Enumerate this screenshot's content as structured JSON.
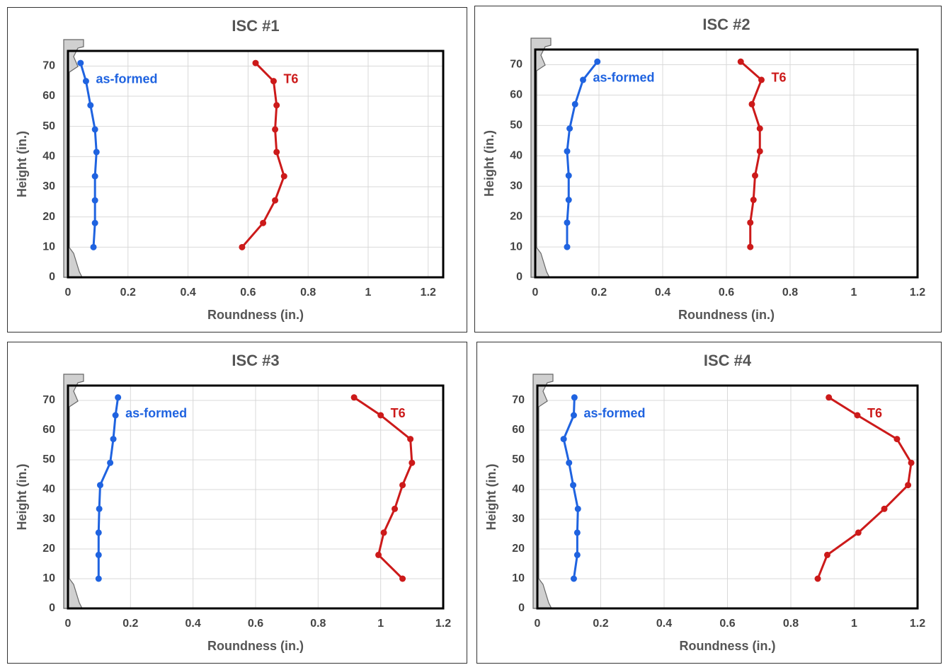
{
  "chart_data": [
    {
      "type": "line",
      "title": "ISC #1",
      "x_label": "Roundness (in.)",
      "y_label": "Height (in.)",
      "xlim": [
        0,
        1.25
      ],
      "xticks": [
        0,
        0.2,
        0.4,
        0.6,
        0.8,
        1,
        1.2
      ],
      "ylim": [
        0,
        75
      ],
      "yticks": [
        0,
        10,
        20,
        30,
        40,
        50,
        60,
        70
      ],
      "grid": true,
      "series": [
        {
          "name": "as-formed",
          "color": "#1f63e0",
          "x": [
            0.042,
            0.06,
            0.075,
            0.09,
            0.095,
            0.09,
            0.09,
            0.09,
            0.085
          ],
          "values": [
            71,
            65,
            57,
            49,
            41.5,
            33.5,
            25.5,
            18,
            10
          ]
        },
        {
          "name": "T6",
          "color": "#cc1a1a",
          "x": [
            0.625,
            0.685,
            0.695,
            0.69,
            0.695,
            0.72,
            0.69,
            0.65,
            0.58
          ],
          "values": [
            71,
            65,
            57,
            49,
            41.5,
            33.5,
            25.5,
            18,
            10
          ]
        }
      ]
    },
    {
      "type": "line",
      "title": "ISC #2",
      "x_label": "Roundness (in.)",
      "y_label": "Height (in.)",
      "xlim": [
        0,
        1.2
      ],
      "xticks": [
        0,
        0.2,
        0.4,
        0.6,
        0.8,
        1,
        1.2
      ],
      "ylim": [
        0,
        75
      ],
      "yticks": [
        0,
        10,
        20,
        30,
        40,
        50,
        60,
        70
      ],
      "grid": true,
      "series": [
        {
          "name": "as-formed",
          "color": "#1f63e0",
          "x": [
            0.195,
            0.15,
            0.125,
            0.108,
            0.1,
            0.105,
            0.105,
            0.1,
            0.1
          ],
          "values": [
            71,
            65,
            57,
            49,
            41.5,
            33.5,
            25.5,
            18,
            10
          ]
        },
        {
          "name": "T6",
          "color": "#cc1a1a",
          "x": [
            0.645,
            0.71,
            0.68,
            0.705,
            0.705,
            0.69,
            0.685,
            0.675,
            0.675
          ],
          "values": [
            71,
            65,
            57,
            49,
            41.5,
            33.5,
            25.5,
            18,
            10
          ]
        }
      ]
    },
    {
      "type": "line",
      "title": "ISC #3",
      "x_label": "Roundness (in.)",
      "y_label": "Height (in.)",
      "xlim": [
        0,
        1.2
      ],
      "xticks": [
        0,
        0.2,
        0.4,
        0.6,
        0.8,
        1,
        1.2
      ],
      "ylim": [
        0,
        75
      ],
      "yticks": [
        0,
        10,
        20,
        30,
        40,
        50,
        60,
        70
      ],
      "grid": true,
      "series": [
        {
          "name": "as-formed",
          "color": "#1f63e0",
          "x": [
            0.16,
            0.152,
            0.145,
            0.135,
            0.103,
            0.1,
            0.098,
            0.098,
            0.098
          ],
          "values": [
            71,
            65,
            57,
            49,
            41.5,
            33.5,
            25.5,
            18,
            10
          ]
        },
        {
          "name": "T6",
          "color": "#cc1a1a",
          "x": [
            0.915,
            1.0,
            1.095,
            1.1,
            1.07,
            1.045,
            1.01,
            0.993,
            1.07
          ],
          "values": [
            71,
            65,
            57,
            49,
            41.5,
            33.5,
            25.5,
            18,
            10
          ]
        }
      ]
    },
    {
      "type": "line",
      "title": "ISC #4",
      "x_label": "Roundness (in.)",
      "y_label": "Height (in.)",
      "xlim": [
        0,
        1.2
      ],
      "xticks": [
        0,
        0.2,
        0.4,
        0.6,
        0.8,
        1,
        1.2
      ],
      "ylim": [
        0,
        75
      ],
      "yticks": [
        0,
        10,
        20,
        30,
        40,
        50,
        60,
        70
      ],
      "grid": true,
      "series": [
        {
          "name": "as-formed",
          "color": "#1f63e0",
          "x": [
            0.117,
            0.115,
            0.083,
            0.1,
            0.113,
            0.128,
            0.126,
            0.126,
            0.115
          ],
          "values": [
            71,
            65,
            57,
            49,
            41.5,
            33.5,
            25.5,
            18,
            10
          ]
        },
        {
          "name": "T6",
          "color": "#cc1a1a",
          "x": [
            0.92,
            1.01,
            1.135,
            1.18,
            1.17,
            1.095,
            1.013,
            0.915,
            0.885
          ],
          "values": [
            71,
            65,
            57,
            49,
            41.5,
            33.5,
            25.5,
            18,
            10
          ]
        }
      ]
    }
  ]
}
